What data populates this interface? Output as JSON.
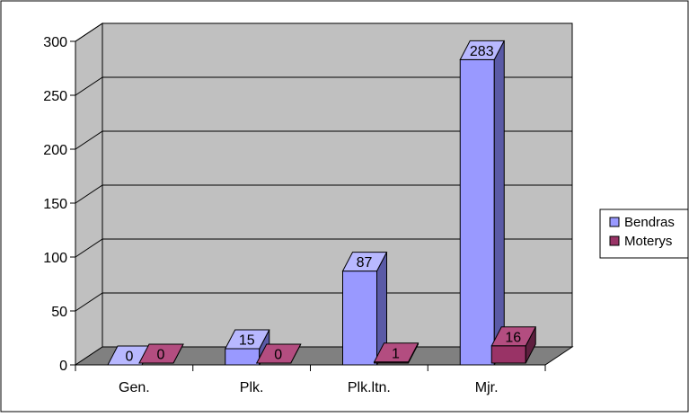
{
  "chart_data": {
    "type": "bar",
    "categories": [
      "Gen.",
      "Plk.",
      "Plk.ltn.",
      "Mjr."
    ],
    "series": [
      {
        "name": "Bendras",
        "values": [
          0,
          15,
          87,
          283
        ],
        "color": "#9999ff",
        "side_color": "#5a5aa6",
        "top_color": "#b8b8ff"
      },
      {
        "name": "Moterys",
        "values": [
          0,
          0,
          1,
          16
        ],
        "color": "#993366",
        "side_color": "#5e1f3f",
        "top_color": "#b34d80"
      }
    ],
    "data_labels": true,
    "ylim": [
      0,
      300
    ],
    "yticks": [
      0,
      50,
      100,
      150,
      200,
      250,
      300
    ],
    "grid": true,
    "legend_position": "right",
    "wall_color": "#c0c0c0",
    "floor_color": "#808080"
  }
}
